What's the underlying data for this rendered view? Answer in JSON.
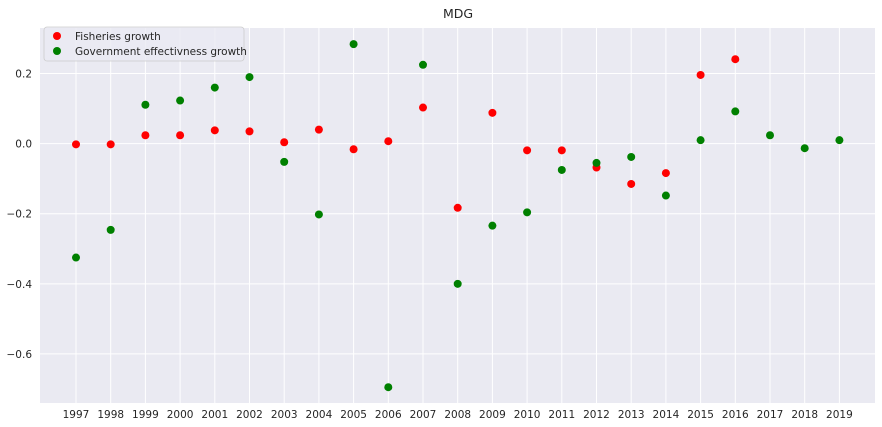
{
  "chart_data": {
    "type": "scatter",
    "title": "MDG",
    "xlabel": "",
    "ylabel": "",
    "categories": [
      "1997",
      "1998",
      "1999",
      "2000",
      "2001",
      "2002",
      "2003",
      "2004",
      "2005",
      "2006",
      "2007",
      "2008",
      "2009",
      "2010",
      "2011",
      "2012",
      "2013",
      "2014",
      "2015",
      "2016",
      "2017",
      "2018",
      "2019"
    ],
    "y_ticks": [
      0.2,
      0.0,
      -0.2,
      -0.4,
      -0.6
    ],
    "y_tick_labels": [
      "0.2",
      "0.0",
      "−0.2",
      "−0.4",
      "−0.6"
    ],
    "ylim": [
      -0.74,
      0.33
    ],
    "grid": true,
    "legend_position": "top-left",
    "series": [
      {
        "name": "Fisheries growth",
        "color": "#ff0000",
        "x": [
          "1997",
          "1998",
          "1999",
          "2000",
          "2001",
          "2002",
          "2003",
          "2004",
          "2005",
          "2006",
          "2007",
          "2008",
          "2009",
          "2010",
          "2011",
          "2012",
          "2013",
          "2014",
          "2015",
          "2016"
        ],
        "values": [
          -0.002,
          -0.002,
          0.024,
          0.024,
          0.038,
          0.035,
          0.004,
          0.04,
          -0.016,
          0.007,
          0.103,
          -0.183,
          0.088,
          -0.019,
          -0.019,
          -0.068,
          -0.115,
          -0.084,
          0.196,
          0.241
        ]
      },
      {
        "name": "Government effectivness growth",
        "color": "#008000",
        "x": [
          "1997",
          "1998",
          "1999",
          "2000",
          "2001",
          "2002",
          "2003",
          "2004",
          "2005",
          "2006",
          "2007",
          "2008",
          "2009",
          "2010",
          "2011",
          "2012",
          "2013",
          "2014",
          "2015",
          "2016",
          "2017",
          "2018",
          "2019"
        ],
        "values": [
          -0.325,
          -0.246,
          0.111,
          0.123,
          0.16,
          0.19,
          -0.052,
          -0.202,
          0.284,
          -0.695,
          0.225,
          -0.4,
          -0.234,
          -0.196,
          -0.075,
          -0.055,
          -0.038,
          -0.148,
          0.01,
          0.092,
          0.024,
          -0.013,
          0.01
        ]
      }
    ]
  }
}
